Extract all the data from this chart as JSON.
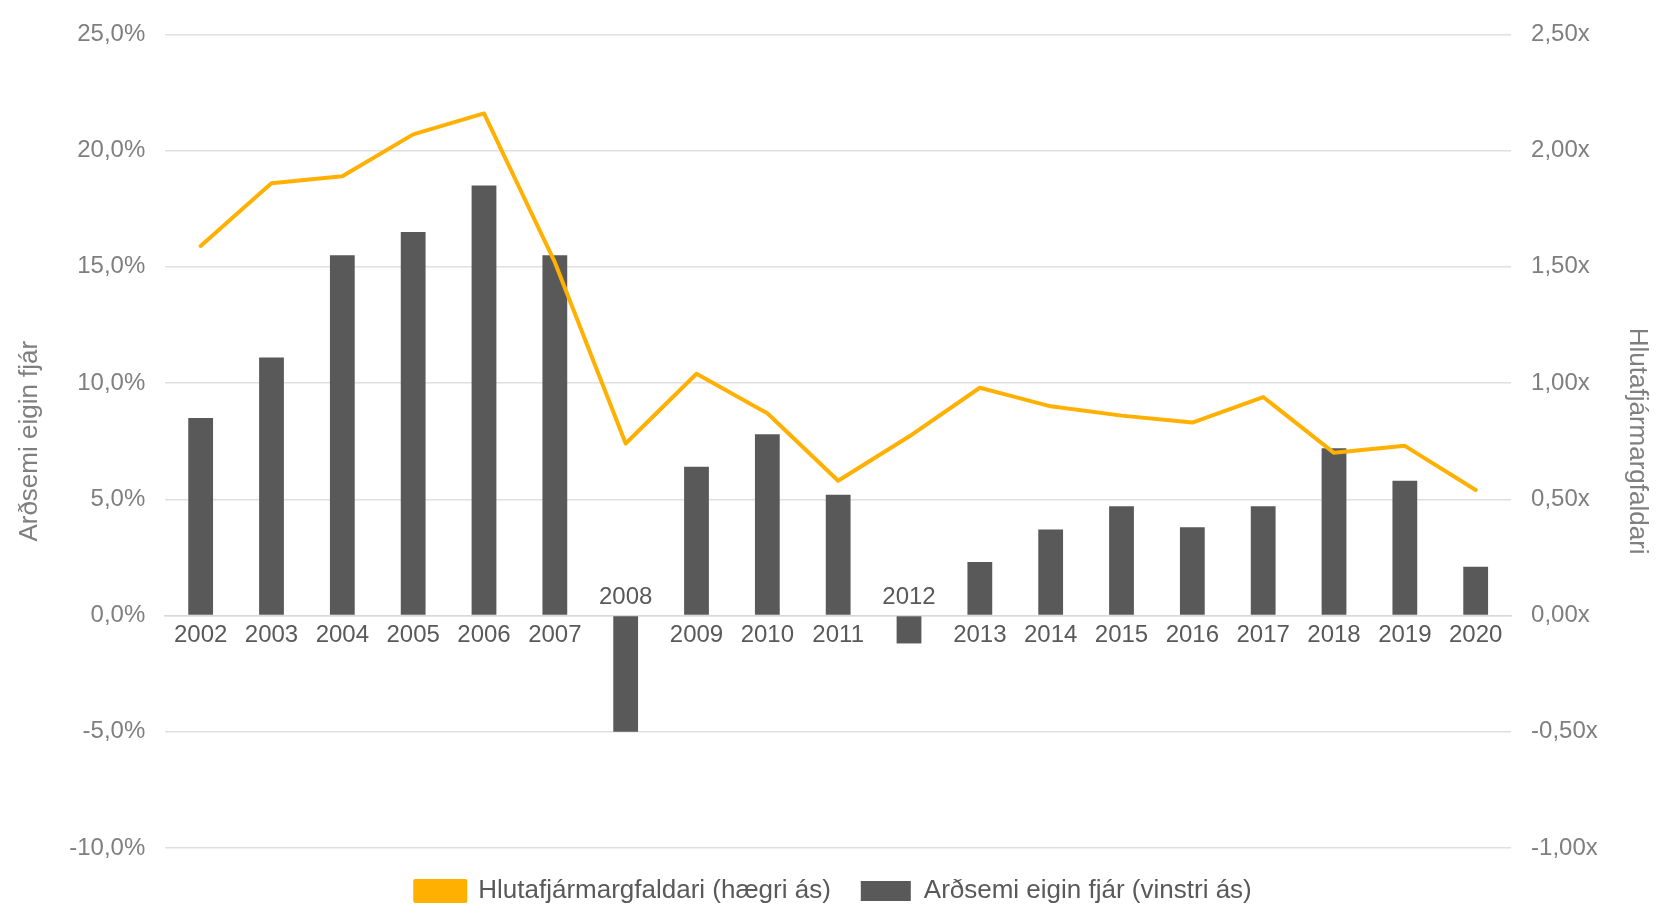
{
  "chart_data": {
    "type": "bar",
    "ylabel": "Arðsemi eigin fjár",
    "y2label": "Hlutafjármargfaldari",
    "categories": [
      "2002",
      "2003",
      "2004",
      "2005",
      "2006",
      "2007",
      "2008",
      "2009",
      "2010",
      "2011",
      "2012",
      "2013",
      "2014",
      "2015",
      "2016",
      "2017",
      "2018",
      "2019",
      "2020"
    ],
    "series": [
      {
        "name": "Arðsemi eigin fjár (vinstri ás)",
        "color": "#595959",
        "values": [
          8.5,
          11.1,
          15.5,
          16.5,
          18.5,
          15.5,
          -5.0,
          6.4,
          7.8,
          5.2,
          -1.2,
          2.3,
          3.7,
          4.7,
          3.8,
          4.7,
          7.2,
          5.8,
          2.1
        ]
      },
      {
        "name": "Hlutafjármargfaldari (hægri ás)",
        "type": "line",
        "axis": "y2",
        "color": "#ffb000",
        "values": [
          1.59,
          1.86,
          1.89,
          2.07,
          2.16,
          1.52,
          0.74,
          1.04,
          0.87,
          0.58,
          0.77,
          0.98,
          0.9,
          0.86,
          0.83,
          0.94,
          0.7,
          0.73,
          0.54
        ]
      }
    ],
    "ylim": [
      -10,
      25
    ],
    "yticks": [
      {
        "value": -10,
        "label": "-10,0%"
      },
      {
        "value": -5,
        "label": "-5,0%"
      },
      {
        "value": 0,
        "label": "0,0%"
      },
      {
        "value": 5,
        "label": "5,0%"
      },
      {
        "value": 10,
        "label": "10,0%"
      },
      {
        "value": 15,
        "label": "15,0%"
      },
      {
        "value": 20,
        "label": "20,0%"
      },
      {
        "value": 25,
        "label": "25,0%"
      }
    ],
    "y2lim": [
      -1,
      2.5
    ],
    "y2ticks": [
      {
        "value": -1,
        "label": "-1,00x"
      },
      {
        "value": -0.5,
        "label": "-0,50x"
      },
      {
        "value": 0,
        "label": "0,00x"
      },
      {
        "value": 0.5,
        "label": "0,50x"
      },
      {
        "value": 1,
        "label": "1,00x"
      },
      {
        "value": 1.5,
        "label": "1,50x"
      },
      {
        "value": 2,
        "label": "2,00x"
      },
      {
        "value": 2.5,
        "label": "2,50x"
      }
    ],
    "grid": "y",
    "legend": "bottom",
    "marker": "none",
    "line_style": "solid"
  }
}
